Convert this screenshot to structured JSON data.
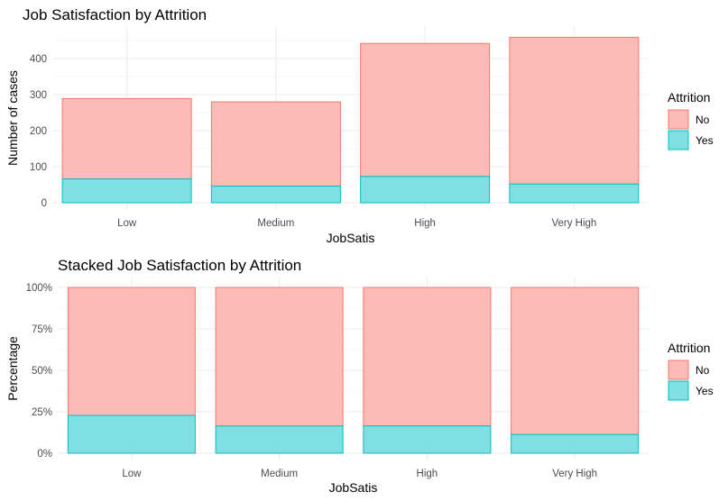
{
  "chart_data": [
    {
      "type": "bar",
      "stacked": true,
      "title": "Job Satisfaction by Attrition",
      "xlabel": "JobSatis",
      "ylabel": "Number of cases",
      "categories": [
        "Low",
        "Medium",
        "High",
        "Very High"
      ],
      "series": [
        {
          "name": "No",
          "values": [
            223,
            234,
            369,
            407
          ],
          "color": "#F8766D"
        },
        {
          "name": "Yes",
          "values": [
            66,
            46,
            73,
            52
          ],
          "color": "#00BFC4"
        }
      ],
      "ylim": [
        0,
        460
      ],
      "yticks": [
        0,
        100,
        200,
        300,
        400
      ],
      "ytick_labels": [
        "0",
        "100",
        "200",
        "300",
        "400"
      ],
      "grid": true,
      "legend": {
        "title": "Attrition",
        "placement": "right"
      }
    },
    {
      "type": "bar",
      "stacked": true,
      "title": "Stacked Job Satisfaction by Attrition",
      "xlabel": "JobSatis",
      "ylabel": "Percentage",
      "categories": [
        "Low",
        "Medium",
        "High",
        "Very High"
      ],
      "series": [
        {
          "name": "No",
          "values": [
            77.2,
            83.6,
            83.5,
            88.7
          ],
          "color": "#F8766D"
        },
        {
          "name": "Yes",
          "values": [
            22.8,
            16.4,
            16.5,
            11.3
          ],
          "color": "#00BFC4"
        }
      ],
      "ylim": [
        0,
        100
      ],
      "yticks": [
        0,
        25,
        50,
        75,
        100
      ],
      "ytick_labels": [
        "0%",
        "25%",
        "50%",
        "75%",
        "100%"
      ],
      "grid": true,
      "legend": {
        "title": "Attrition",
        "placement": "right"
      }
    }
  ]
}
